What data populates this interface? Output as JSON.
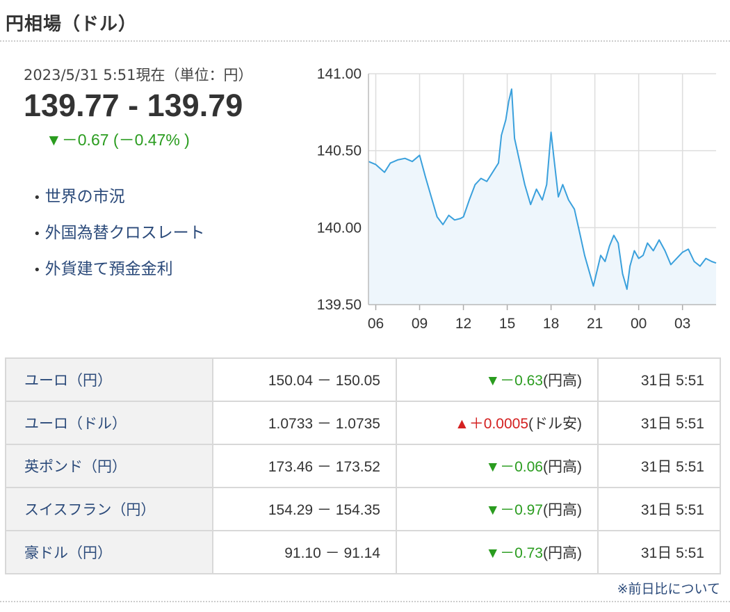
{
  "header": {
    "title": "円相場（ドル）"
  },
  "summary": {
    "timestamp": "2023/5/31 5:51現在（単位：円）",
    "rate": "139.77 - 139.79",
    "change": "▼－0.67 (－0.47% )"
  },
  "links": [
    {
      "label": "世界の市況"
    },
    {
      "label": "外国為替クロスレート"
    },
    {
      "label": "外貨建て預金金利"
    }
  ],
  "chart_data": {
    "type": "line",
    "title": "",
    "xlabel": "",
    "ylabel": "",
    "ylim": [
      139.5,
      141.0
    ],
    "y_ticks": [
      "141.00",
      "140.50",
      "140.00",
      "139.50"
    ],
    "x_ticks": [
      "06",
      "09",
      "12",
      "15",
      "18",
      "21",
      "00",
      "03"
    ],
    "grid": true,
    "line_color": "#3aa0dc",
    "fill_color": "#eef6fc",
    "series": [
      {
        "x": [
          5.5,
          6.0,
          6.6,
          7.0,
          7.5,
          8.0,
          8.5,
          9.0,
          9.4,
          9.8,
          10.2,
          10.6,
          11.0,
          11.4,
          11.8,
          12.0,
          12.4,
          12.8,
          13.2,
          13.6,
          14.0,
          14.4,
          14.6,
          14.9,
          15.1,
          15.3,
          15.5,
          15.8,
          16.2,
          16.6,
          17.0,
          17.4,
          17.7,
          18.0,
          18.2,
          18.5,
          18.8,
          19.2,
          19.6,
          20.0,
          20.3,
          20.6,
          20.9,
          21.1,
          21.4,
          21.7,
          22.0,
          22.3,
          22.6,
          22.9,
          23.2,
          23.4,
          23.7,
          24.0,
          24.3,
          24.6,
          25.0,
          25.4,
          25.8,
          26.2,
          26.6,
          27.0,
          27.4,
          27.8,
          28.2,
          28.6,
          29.0,
          29.3
        ],
        "values": [
          140.43,
          140.41,
          140.36,
          140.42,
          140.44,
          140.45,
          140.43,
          140.47,
          140.33,
          140.2,
          140.07,
          140.02,
          140.08,
          140.05,
          140.06,
          140.07,
          140.18,
          140.28,
          140.32,
          140.3,
          140.36,
          140.42,
          140.6,
          140.7,
          140.82,
          140.9,
          140.58,
          140.45,
          140.28,
          140.15,
          140.25,
          140.18,
          140.28,
          140.62,
          140.45,
          140.2,
          140.28,
          140.18,
          140.12,
          139.95,
          139.82,
          139.72,
          139.62,
          139.7,
          139.82,
          139.78,
          139.88,
          139.95,
          139.9,
          139.7,
          139.6,
          139.75,
          139.85,
          139.8,
          139.82,
          139.9,
          139.85,
          139.92,
          139.85,
          139.76,
          139.8,
          139.84,
          139.86,
          139.78,
          139.75,
          139.8,
          139.78,
          139.77
        ]
      }
    ]
  },
  "table": {
    "rows": [
      {
        "pair": "ユーロ（円）",
        "range": "150.04 － 150.05",
        "change": "▼－0.63",
        "note": "(円高)",
        "dir": "down",
        "time": "31日 5:51"
      },
      {
        "pair": "ユーロ（ドル）",
        "range": "1.0733 － 1.0735",
        "change": "▲＋0.0005",
        "note": "(ドル安)",
        "dir": "up",
        "time": "31日 5:51"
      },
      {
        "pair": "英ポンド（円）",
        "range": "173.46 － 173.52",
        "change": "▼－0.06",
        "note": "(円高)",
        "dir": "down",
        "time": "31日 5:51"
      },
      {
        "pair": "スイスフラン（円）",
        "range": "154.29 － 154.35",
        "change": "▼－0.97",
        "note": "(円高)",
        "dir": "down",
        "time": "31日 5:51"
      },
      {
        "pair": "豪ドル（円）",
        "range": "91.10 － 91.14",
        "change": "▼－0.73",
        "note": "(円高)",
        "dir": "down",
        "time": "31日 5:51"
      }
    ]
  },
  "footer": {
    "note": "※前日比について"
  }
}
